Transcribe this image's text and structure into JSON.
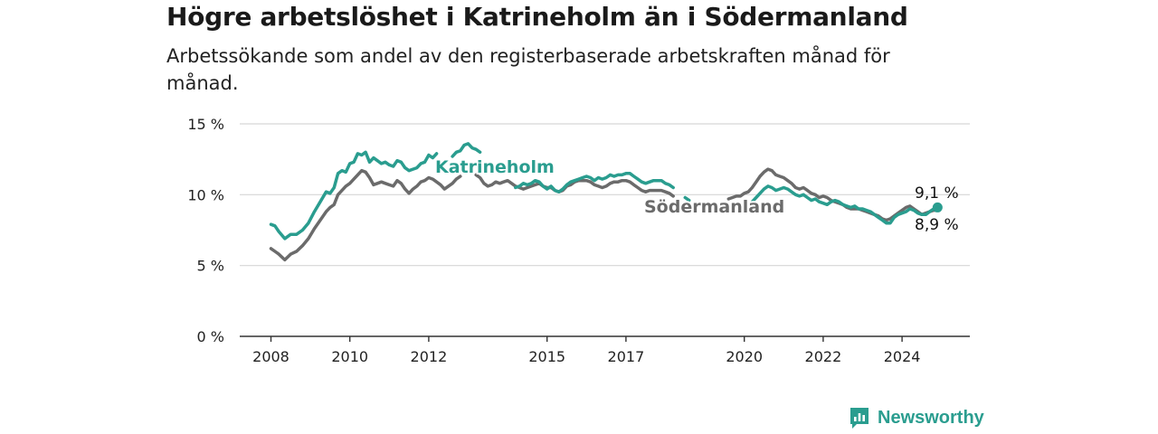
{
  "header": {
    "title": "Högre arbetslöshet i Katrineholm än i Södermanland",
    "subtitle": "Arbetssökande som andel av den registerbaserade arbetskraften månad för månad."
  },
  "brand": {
    "name": "Newsworthy",
    "icon": "newsworthy-logo-icon",
    "color": "#2a9d8f"
  },
  "chart_data": {
    "type": "line",
    "title": "Högre arbetslöshet i Katrineholm än i Södermanland",
    "subtitle": "Arbetssökande som andel av den registerbaserade arbetskraften månad för månad.",
    "xlabel": "",
    "ylabel": "",
    "ylim": [
      0,
      15
    ],
    "xlim": [
      2007.5,
      2025.9
    ],
    "y_ticks": [
      0,
      5,
      10,
      15
    ],
    "y_tick_labels": [
      "0 %",
      "5 %",
      "10 %",
      "15 %"
    ],
    "x_ticks": [
      2008,
      2010,
      2012,
      2015,
      2017,
      2020,
      2022,
      2024
    ],
    "x_tick_labels": [
      "2008",
      "2010",
      "2012",
      "2015",
      "2017",
      "2020",
      "2022",
      "2024"
    ],
    "grid": true,
    "legend": "none (series labeled directly on lines)",
    "series": [
      {
        "name": "Katrineholm",
        "color": "#2a9d8f",
        "end_label": "9,1 %",
        "points": [
          [
            2008.0,
            7.9
          ],
          [
            2008.1,
            7.8
          ],
          [
            2008.2,
            7.4
          ],
          [
            2008.35,
            6.9
          ],
          [
            2008.5,
            7.2
          ],
          [
            2008.65,
            7.2
          ],
          [
            2008.8,
            7.5
          ],
          [
            2008.95,
            8.0
          ],
          [
            2009.1,
            8.8
          ],
          [
            2009.25,
            9.5
          ],
          [
            2009.4,
            10.2
          ],
          [
            2009.5,
            10.1
          ],
          [
            2009.6,
            10.5
          ],
          [
            2009.7,
            11.5
          ],
          [
            2009.8,
            11.7
          ],
          [
            2009.9,
            11.6
          ],
          [
            2010.0,
            12.2
          ],
          [
            2010.1,
            12.3
          ],
          [
            2010.2,
            12.9
          ],
          [
            2010.3,
            12.8
          ],
          [
            2010.4,
            13.0
          ],
          [
            2010.5,
            12.3
          ],
          [
            2010.6,
            12.6
          ],
          [
            2010.7,
            12.4
          ],
          [
            2010.8,
            12.2
          ],
          [
            2010.9,
            12.3
          ],
          [
            2011.0,
            12.1
          ],
          [
            2011.1,
            12.0
          ],
          [
            2011.2,
            12.4
          ],
          [
            2011.3,
            12.3
          ],
          [
            2011.4,
            11.9
          ],
          [
            2011.5,
            11.7
          ],
          [
            2011.6,
            11.8
          ],
          [
            2011.7,
            11.9
          ],
          [
            2011.8,
            12.2
          ],
          [
            2011.9,
            12.3
          ],
          [
            2012.0,
            12.8
          ],
          [
            2012.1,
            12.6
          ],
          [
            2012.2,
            12.9
          ],
          [
            null,
            null
          ],
          [
            2012.6,
            12.7
          ],
          [
            2012.7,
            13.0
          ],
          [
            2012.8,
            13.1
          ],
          [
            2012.9,
            13.5
          ],
          [
            2013.0,
            13.6
          ],
          [
            2013.1,
            13.3
          ],
          [
            2013.2,
            13.2
          ],
          [
            2013.3,
            13.0
          ],
          [
            null,
            null
          ],
          [
            2014.2,
            10.5
          ],
          [
            2014.3,
            10.6
          ],
          [
            2014.4,
            10.8
          ],
          [
            2014.5,
            10.7
          ],
          [
            2014.6,
            10.8
          ],
          [
            2014.7,
            11.0
          ],
          [
            2014.8,
            10.9
          ],
          [
            2014.9,
            10.6
          ],
          [
            2015.0,
            10.4
          ],
          [
            2015.1,
            10.6
          ],
          [
            2015.2,
            10.3
          ],
          [
            2015.3,
            10.2
          ],
          [
            2015.4,
            10.4
          ],
          [
            2015.5,
            10.7
          ],
          [
            2015.6,
            10.9
          ],
          [
            2015.7,
            11.0
          ],
          [
            2015.8,
            11.1
          ],
          [
            2015.9,
            11.2
          ],
          [
            2016.0,
            11.3
          ],
          [
            2016.1,
            11.2
          ],
          [
            2016.2,
            11.0
          ],
          [
            2016.3,
            11.2
          ],
          [
            2016.4,
            11.1
          ],
          [
            2016.5,
            11.2
          ],
          [
            2016.6,
            11.4
          ],
          [
            2016.7,
            11.3
          ],
          [
            2016.8,
            11.4
          ],
          [
            2016.9,
            11.4
          ],
          [
            2017.0,
            11.5
          ],
          [
            2017.1,
            11.5
          ],
          [
            2017.2,
            11.3
          ],
          [
            2017.3,
            11.1
          ],
          [
            2017.4,
            10.9
          ],
          [
            2017.5,
            10.8
          ],
          [
            2017.6,
            10.9
          ],
          [
            2017.7,
            11.0
          ],
          [
            2017.8,
            11.0
          ],
          [
            2017.9,
            11.0
          ],
          [
            2018.0,
            10.8
          ],
          [
            2018.1,
            10.7
          ],
          [
            2018.2,
            10.5
          ],
          [
            null,
            null
          ],
          [
            2018.5,
            9.8
          ],
          [
            2018.6,
            9.6
          ],
          [
            null,
            null
          ],
          [
            2020.2,
            9.5
          ],
          [
            2020.3,
            9.8
          ],
          [
            2020.4,
            10.1
          ],
          [
            2020.5,
            10.4
          ],
          [
            2020.6,
            10.6
          ],
          [
            2020.7,
            10.5
          ],
          [
            2020.8,
            10.3
          ],
          [
            2020.9,
            10.4
          ],
          [
            2021.0,
            10.5
          ],
          [
            2021.1,
            10.4
          ],
          [
            2021.2,
            10.2
          ],
          [
            2021.3,
            10.0
          ],
          [
            2021.4,
            9.9
          ],
          [
            2021.5,
            10.0
          ],
          [
            2021.6,
            9.8
          ],
          [
            2021.7,
            9.6
          ],
          [
            2021.8,
            9.7
          ],
          [
            2021.9,
            9.5
          ],
          [
            2022.0,
            9.4
          ],
          [
            2022.1,
            9.3
          ],
          [
            2022.2,
            9.5
          ],
          [
            2022.3,
            9.6
          ],
          [
            2022.4,
            9.5
          ],
          [
            2022.5,
            9.3
          ],
          [
            2022.6,
            9.2
          ],
          [
            2022.7,
            9.1
          ],
          [
            2022.8,
            9.2
          ],
          [
            2022.9,
            9.0
          ],
          [
            2023.0,
            9.0
          ],
          [
            2023.1,
            8.9
          ],
          [
            2023.2,
            8.8
          ],
          [
            2023.3,
            8.6
          ],
          [
            2023.4,
            8.4
          ],
          [
            2023.5,
            8.2
          ],
          [
            2023.6,
            8.0
          ],
          [
            2023.7,
            8.0
          ],
          [
            2023.8,
            8.4
          ],
          [
            2023.9,
            8.6
          ],
          [
            2024.0,
            8.7
          ],
          [
            2024.1,
            8.8
          ],
          [
            2024.2,
            9.0
          ],
          [
            2024.3,
            8.9
          ],
          [
            2024.4,
            8.7
          ],
          [
            2024.5,
            8.6
          ],
          [
            2024.6,
            8.6
          ],
          [
            2024.7,
            8.8
          ],
          [
            2024.8,
            9.0
          ],
          [
            2024.9,
            9.1
          ]
        ]
      },
      {
        "name": "Södermanland",
        "color": "#6b6b6b",
        "end_label": "8,9 %",
        "points": [
          [
            2008.0,
            6.2
          ],
          [
            2008.1,
            6.0
          ],
          [
            2008.2,
            5.8
          ],
          [
            2008.35,
            5.4
          ],
          [
            2008.5,
            5.8
          ],
          [
            2008.65,
            6.0
          ],
          [
            2008.8,
            6.4
          ],
          [
            2008.95,
            6.9
          ],
          [
            2009.1,
            7.6
          ],
          [
            2009.25,
            8.2
          ],
          [
            2009.4,
            8.8
          ],
          [
            2009.5,
            9.1
          ],
          [
            2009.6,
            9.3
          ],
          [
            2009.7,
            10.0
          ],
          [
            2009.8,
            10.3
          ],
          [
            2009.9,
            10.6
          ],
          [
            2010.0,
            10.8
          ],
          [
            2010.1,
            11.1
          ],
          [
            2010.2,
            11.4
          ],
          [
            2010.3,
            11.7
          ],
          [
            2010.4,
            11.6
          ],
          [
            2010.5,
            11.2
          ],
          [
            2010.6,
            10.7
          ],
          [
            2010.7,
            10.8
          ],
          [
            2010.8,
            10.9
          ],
          [
            2010.9,
            10.8
          ],
          [
            2011.0,
            10.7
          ],
          [
            2011.1,
            10.6
          ],
          [
            2011.2,
            11.0
          ],
          [
            2011.3,
            10.8
          ],
          [
            2011.4,
            10.4
          ],
          [
            2011.5,
            10.1
          ],
          [
            2011.6,
            10.4
          ],
          [
            2011.7,
            10.6
          ],
          [
            2011.8,
            10.9
          ],
          [
            2011.9,
            11.0
          ],
          [
            2012.0,
            11.2
          ],
          [
            2012.1,
            11.1
          ],
          [
            2012.2,
            10.9
          ],
          [
            2012.3,
            10.7
          ],
          [
            2012.4,
            10.4
          ],
          [
            2012.5,
            10.6
          ],
          [
            2012.6,
            10.8
          ],
          [
            2012.7,
            11.1
          ],
          [
            2012.8,
            11.3
          ],
          [
            null,
            null
          ],
          [
            2013.2,
            11.4
          ],
          [
            2013.3,
            11.2
          ],
          [
            2013.4,
            10.8
          ],
          [
            2013.5,
            10.6
          ],
          [
            2013.6,
            10.7
          ],
          [
            2013.7,
            10.9
          ],
          [
            2013.8,
            10.8
          ],
          [
            2013.9,
            10.9
          ],
          [
            2014.0,
            11.0
          ],
          [
            2014.1,
            10.8
          ],
          [
            2014.2,
            10.6
          ],
          [
            2014.3,
            10.5
          ],
          [
            2014.4,
            10.4
          ],
          [
            2014.5,
            10.5
          ],
          [
            2014.6,
            10.6
          ],
          [
            2014.7,
            10.7
          ],
          [
            2014.8,
            10.8
          ],
          [
            2014.9,
            10.6
          ],
          [
            2015.0,
            10.5
          ],
          [
            2015.1,
            10.5
          ],
          [
            2015.2,
            10.3
          ],
          [
            2015.3,
            10.2
          ],
          [
            2015.4,
            10.3
          ],
          [
            2015.5,
            10.6
          ],
          [
            2015.6,
            10.7
          ],
          [
            2015.7,
            10.9
          ],
          [
            2015.8,
            11.0
          ],
          [
            2015.9,
            11.0
          ],
          [
            2016.0,
            11.0
          ],
          [
            2016.1,
            10.9
          ],
          [
            2016.2,
            10.7
          ],
          [
            2016.3,
            10.6
          ],
          [
            2016.4,
            10.5
          ],
          [
            2016.5,
            10.6
          ],
          [
            2016.6,
            10.8
          ],
          [
            2016.7,
            10.9
          ],
          [
            2016.8,
            10.9
          ],
          [
            2016.9,
            11.0
          ],
          [
            2017.0,
            11.0
          ],
          [
            2017.1,
            10.9
          ],
          [
            2017.2,
            10.7
          ],
          [
            2017.3,
            10.5
          ],
          [
            2017.4,
            10.3
          ],
          [
            2017.5,
            10.2
          ],
          [
            2017.6,
            10.3
          ],
          [
            2017.7,
            10.3
          ],
          [
            2017.8,
            10.3
          ],
          [
            2017.9,
            10.3
          ],
          [
            2018.0,
            10.2
          ],
          [
            2018.1,
            10.1
          ],
          [
            2018.2,
            9.9
          ],
          [
            null,
            null
          ],
          [
            2019.6,
            9.7
          ],
          [
            2019.7,
            9.8
          ],
          [
            2019.8,
            9.9
          ],
          [
            2019.9,
            9.9
          ],
          [
            2020.0,
            10.1
          ],
          [
            2020.1,
            10.2
          ],
          [
            2020.2,
            10.5
          ],
          [
            2020.3,
            10.9
          ],
          [
            2020.4,
            11.3
          ],
          [
            2020.5,
            11.6
          ],
          [
            2020.6,
            11.8
          ],
          [
            2020.7,
            11.7
          ],
          [
            2020.8,
            11.4
          ],
          [
            2020.9,
            11.3
          ],
          [
            2021.0,
            11.2
          ],
          [
            2021.1,
            11.0
          ],
          [
            2021.2,
            10.8
          ],
          [
            2021.3,
            10.5
          ],
          [
            2021.4,
            10.4
          ],
          [
            2021.5,
            10.5
          ],
          [
            2021.6,
            10.3
          ],
          [
            2021.7,
            10.1
          ],
          [
            2021.8,
            10.0
          ],
          [
            2021.9,
            9.8
          ],
          [
            2022.0,
            9.9
          ],
          [
            2022.1,
            9.8
          ],
          [
            2022.2,
            9.6
          ],
          [
            2022.3,
            9.5
          ],
          [
            2022.4,
            9.4
          ],
          [
            2022.5,
            9.3
          ],
          [
            2022.6,
            9.1
          ],
          [
            2022.7,
            9.0
          ],
          [
            2022.8,
            9.0
          ],
          [
            2022.9,
            9.0
          ],
          [
            2023.0,
            8.9
          ],
          [
            2023.1,
            8.8
          ],
          [
            2023.2,
            8.7
          ],
          [
            2023.3,
            8.6
          ],
          [
            2023.4,
            8.5
          ],
          [
            2023.5,
            8.3
          ],
          [
            2023.6,
            8.2
          ],
          [
            2023.7,
            8.3
          ],
          [
            2023.8,
            8.5
          ],
          [
            2023.9,
            8.7
          ],
          [
            2024.0,
            8.9
          ],
          [
            2024.1,
            9.1
          ],
          [
            2024.2,
            9.2
          ],
          [
            2024.3,
            9.0
          ],
          [
            2024.4,
            8.8
          ],
          [
            2024.5,
            8.6
          ],
          [
            2024.6,
            8.7
          ],
          [
            2024.7,
            8.8
          ],
          [
            2024.8,
            8.9
          ],
          [
            2024.9,
            8.9
          ]
        ]
      }
    ]
  }
}
